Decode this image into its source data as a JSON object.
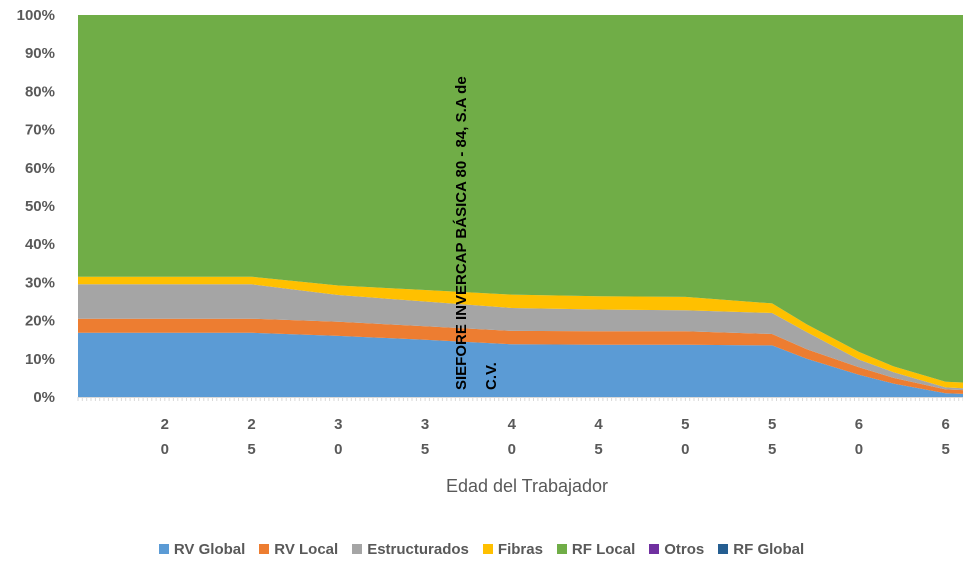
{
  "chart_data": {
    "type": "area",
    "stacked": "percent",
    "xlabel": "Edad del Trabajador",
    "annotation": [
      "SIEFORE INVERCAP BÁSICA 80 - 84, S.A de",
      "C.V."
    ],
    "y_ticks": [
      "0%",
      "10%",
      "20%",
      "30%",
      "40%",
      "50%",
      "60%",
      "70%",
      "80%",
      "90%",
      "100%"
    ],
    "ylim": [
      0,
      100
    ],
    "x_range": [
      15,
      66
    ],
    "x_tick_values": [
      20,
      25,
      30,
      35,
      40,
      45,
      50,
      55,
      60,
      65
    ],
    "x_tick_labels": [
      [
        "2",
        "0"
      ],
      [
        "2",
        "5"
      ],
      [
        "3",
        "0"
      ],
      [
        "3",
        "5"
      ],
      [
        "4",
        "0"
      ],
      [
        "4",
        "5"
      ],
      [
        "5",
        "0"
      ],
      [
        "5",
        "5"
      ],
      [
        "6",
        "0"
      ],
      [
        "6",
        "5"
      ]
    ],
    "x": [
      15,
      25,
      30,
      35,
      40,
      45,
      50,
      55,
      57,
      60,
      62,
      65,
      66
    ],
    "series": [
      {
        "name": "RV Global",
        "color": "#5B9BD5",
        "values": [
          16.8,
          16.8,
          16.0,
          15.0,
          13.8,
          13.7,
          13.7,
          13.5,
          10.0,
          5.8,
          3.5,
          1.0,
          0.8
        ]
      },
      {
        "name": "RV Local",
        "color": "#ED7D31",
        "values": [
          3.7,
          3.7,
          3.7,
          3.5,
          3.5,
          3.5,
          3.5,
          3.0,
          2.5,
          2.0,
          1.5,
          1.0,
          1.0
        ]
      },
      {
        "name": "Estructurados",
        "color": "#A5A5A5",
        "values": [
          9.0,
          9.0,
          7.0,
          6.5,
          6.0,
          5.7,
          5.5,
          5.5,
          4.5,
          2.0,
          1.5,
          0.5,
          0.5
        ]
      },
      {
        "name": "Fibras",
        "color": "#FFC000",
        "values": [
          2.0,
          2.0,
          2.5,
          3.0,
          3.5,
          3.5,
          3.5,
          2.5,
          2.0,
          2.0,
          1.5,
          1.5,
          1.5
        ]
      },
      {
        "name": "RF Local",
        "color": "#70AD47",
        "values": [
          68.5,
          68.5,
          70.8,
          72.0,
          73.2,
          73.6,
          73.8,
          75.5,
          81.0,
          88.2,
          92.0,
          96.0,
          96.2
        ]
      },
      {
        "name": "Otros",
        "color": "#7030A0",
        "values": [
          0,
          0,
          0,
          0,
          0,
          0,
          0,
          0,
          0,
          0,
          0,
          0,
          0
        ]
      },
      {
        "name": "RF Global",
        "color": "#255E91",
        "values": [
          0,
          0,
          0,
          0,
          0,
          0,
          0,
          0,
          0,
          0,
          0,
          0,
          0
        ]
      }
    ],
    "legend_position": "bottom",
    "grid": false
  }
}
